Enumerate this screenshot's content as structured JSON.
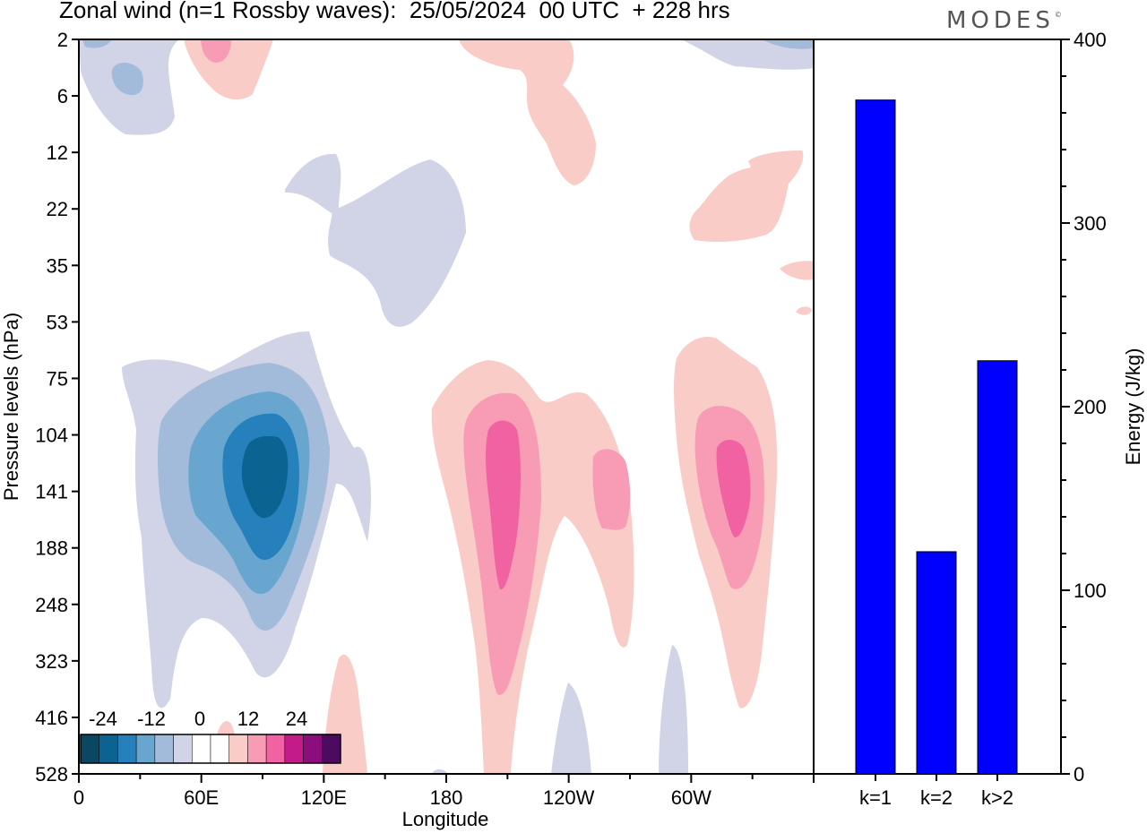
{
  "title": "Zonal wind (n=1 Rossby waves):  25/05/2024  00 UTC  + 228 hrs",
  "logo": "MODES",
  "logo_mark": "©",
  "chart_data": [
    {
      "type": "heatmap",
      "title": "Zonal wind (n=1 Rossby waves):  25/05/2024  00 UTC  + 228 hrs",
      "xlabel": "Longitude",
      "ylabel": "Pressure levels (hPa)",
      "x_ticks": [
        "0",
        "60E",
        "120E",
        "180",
        "120W",
        "60W"
      ],
      "x_range_deg": [
        0,
        360
      ],
      "y_ticks": [
        "2",
        "6",
        "12",
        "22",
        "35",
        "53",
        "75",
        "104",
        "141",
        "188",
        "248",
        "323",
        "416",
        "528"
      ],
      "colorbar": {
        "labels": [
          "-24",
          "-12",
          "0",
          "12",
          "24"
        ],
        "colors": [
          "#0b4662",
          "#0a6391",
          "#2680bb",
          "#68a6cf",
          "#a2bbda",
          "#d1d4e7",
          "#ffffff",
          "#ffffff",
          "#f9ccc7",
          "#f89bb5",
          "#f062a1",
          "#c41a8a",
          "#8b0e7c",
          "#4c0a60"
        ]
      },
      "anomalies": [
        {
          "sign": "negative",
          "lon": 95,
          "level": "104-188",
          "peak": -24
        },
        {
          "sign": "negative",
          "lon": 120,
          "level": "22-53",
          "peak": -6
        },
        {
          "sign": "negative",
          "lon": 25,
          "level": "2-12",
          "peak": -12
        },
        {
          "sign": "positive",
          "lon": 207,
          "level": "75-323",
          "peak": 18
        },
        {
          "sign": "positive",
          "lon": 260,
          "level": "104-188",
          "peak": 12
        },
        {
          "sign": "positive",
          "lon": 322,
          "level": "75-248",
          "peak": 18
        },
        {
          "sign": "positive",
          "lon": 67,
          "level": "2-6",
          "peak": 12
        },
        {
          "sign": "positive",
          "lon": 225,
          "level": "2-12",
          "peak": 6
        },
        {
          "sign": "positive",
          "lon": 340,
          "level": "12-22",
          "peak": 6
        },
        {
          "sign": "positive",
          "lon": 130,
          "level": "323-528",
          "peak": 6
        },
        {
          "sign": "negative",
          "lon": 240,
          "level": "416-528",
          "peak": -6
        },
        {
          "sign": "negative",
          "lon": 292,
          "level": "323-528",
          "peak": -6
        }
      ]
    },
    {
      "type": "bar",
      "categories": [
        "k=1",
        "k=2",
        "k>2"
      ],
      "values": [
        367,
        121,
        225
      ],
      "ylabel": "Energy (J/kg)",
      "ylim": [
        0,
        400
      ],
      "y_ticks": [
        0,
        100,
        200,
        300,
        400
      ],
      "bar_color": "#0000ff"
    }
  ]
}
